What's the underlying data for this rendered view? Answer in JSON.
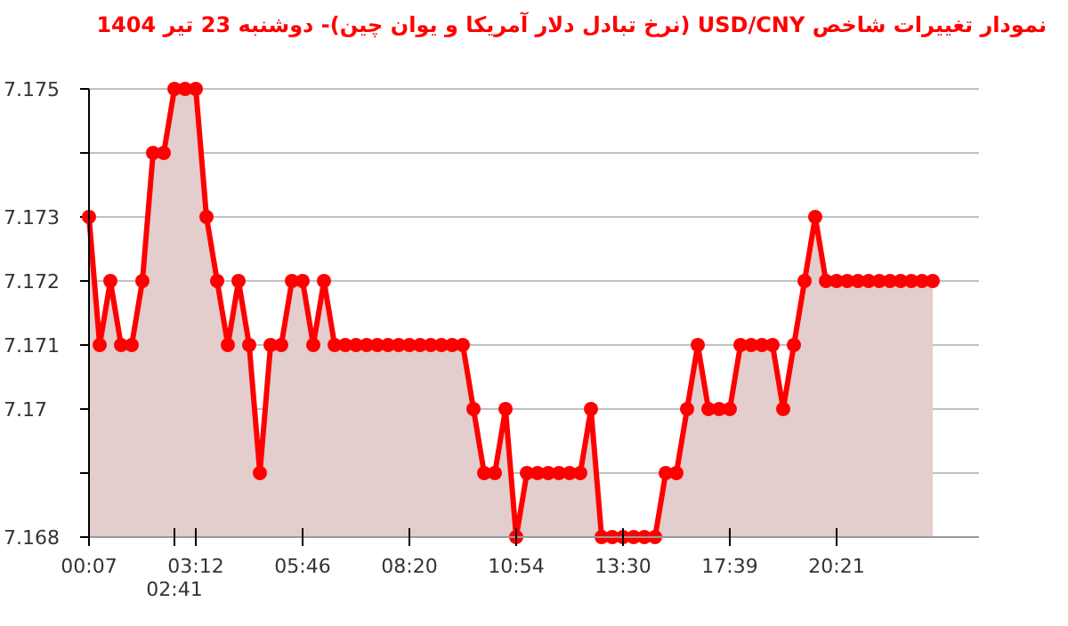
{
  "chart_data": {
    "type": "area",
    "title": "نمودار تغییرات شاخص USD/CNY (نرخ تبادل دلار آمریکا و یوان چین)-  دوشنبه  23 تیر 1404",
    "categories": [
      "00:07",
      null,
      null,
      null,
      null,
      null,
      null,
      null,
      "02:41",
      null,
      "03:12",
      null,
      null,
      null,
      null,
      null,
      null,
      null,
      null,
      null,
      "05:46",
      null,
      null,
      null,
      null,
      null,
      null,
      null,
      null,
      null,
      "08:20",
      null,
      null,
      null,
      null,
      null,
      null,
      null,
      null,
      null,
      "10:54",
      null,
      null,
      null,
      null,
      null,
      null,
      null,
      null,
      null,
      "13:30",
      null,
      null,
      null,
      null,
      null,
      null,
      null,
      null,
      null,
      "17:39",
      null,
      null,
      null,
      null,
      null,
      null,
      null,
      null,
      null,
      "20:21",
      null,
      null,
      null,
      null,
      null,
      null,
      null,
      null,
      null
    ],
    "series": [
      {
        "color": "#ff0000",
        "values": [
          7.173,
          7.171,
          7.172,
          7.171,
          7.171,
          7.172,
          7.174,
          7.174,
          7.175,
          7.175,
          7.175,
          7.173,
          7.172,
          7.171,
          7.172,
          7.171,
          7.169,
          7.171,
          7.171,
          7.172,
          7.172,
          7.171,
          7.172,
          7.171,
          7.171,
          7.171,
          7.171,
          7.171,
          7.171,
          7.171,
          7.171,
          7.171,
          7.171,
          7.171,
          7.171,
          7.171,
          7.17,
          7.169,
          7.169,
          7.17,
          7.168,
          7.169,
          7.169,
          7.169,
          7.169,
          7.169,
          7.169,
          7.17,
          7.168,
          7.168,
          7.168,
          7.168,
          7.168,
          7.168,
          7.169,
          7.169,
          7.17,
          7.171,
          7.17,
          7.17,
          7.17,
          7.171,
          7.171,
          7.171,
          7.171,
          7.17,
          7.171,
          7.172,
          7.173,
          7.172,
          7.172,
          7.172,
          7.172,
          7.172,
          7.172,
          7.172,
          7.172,
          7.172,
          7.172,
          7.172
        ]
      }
    ],
    "ylim": [
      7.168,
      7.175
    ],
    "yticks": [
      7.168,
      {
        "value": 7.169,
        "label": null
      },
      7.17,
      7.171,
      7.172,
      7.173,
      {
        "value": 7.174,
        "label": null
      },
      7.175
    ],
    "grid": "y",
    "marker": "circle",
    "line_style": "solid"
  }
}
